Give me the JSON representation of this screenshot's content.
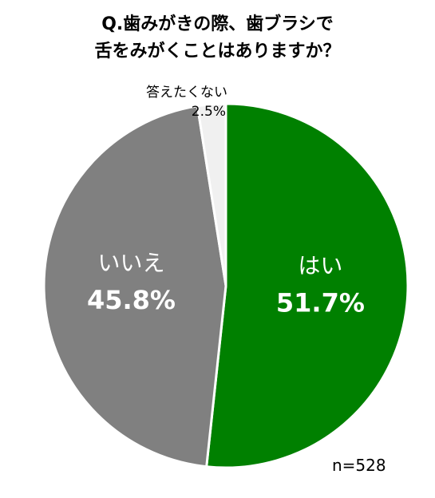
{
  "title": {
    "line1": "Q.歯みがきの際、歯ブラシで",
    "line2": "舌をみがくことはありますか？"
  },
  "sample_size": "n=528",
  "chart_data": {
    "type": "pie",
    "slices": [
      {
        "label": "はい",
        "value": 51.7,
        "display": "51.7%",
        "color": "#008000"
      },
      {
        "label": "いいえ",
        "value": 45.8,
        "display": "45.8%",
        "color": "#808080"
      },
      {
        "label": "答えたくない",
        "value": 2.5,
        "display": "2.5%",
        "color": "#f0f0f0"
      }
    ]
  }
}
